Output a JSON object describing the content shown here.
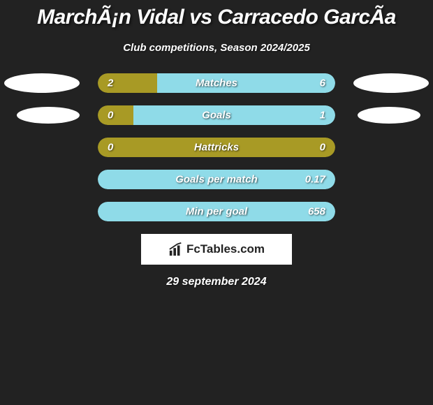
{
  "title": "MarchÃ¡n Vidal vs Carracedo GarcÃ­a",
  "subtitle": "Club competitions, Season 2024/2025",
  "date": "29 september 2024",
  "logo_text": "FcTables.com",
  "colors": {
    "background": "#222222",
    "text": "#ffffff",
    "left_player": "#a89a25",
    "right_player": "#8fdbe8",
    "ellipse": "#ffffff",
    "logo_bg": "#ffffff",
    "logo_text": "#222222"
  },
  "stats": [
    {
      "label": "Matches",
      "left_value": "2",
      "right_value": "6",
      "left_num": 2,
      "right_num": 6,
      "show_ellipses": true,
      "left_pct": 25,
      "right_pct": 75
    },
    {
      "label": "Goals",
      "left_value": "0",
      "right_value": "1",
      "left_num": 0,
      "right_num": 1,
      "show_ellipses": true,
      "left_pct": 15,
      "right_pct": 85
    },
    {
      "label": "Hattricks",
      "left_value": "0",
      "right_value": "0",
      "left_num": 0,
      "right_num": 0,
      "show_ellipses": false,
      "left_pct": 100,
      "right_pct": 0
    },
    {
      "label": "Goals per match",
      "left_value": "",
      "right_value": "0.17",
      "left_num": 0,
      "right_num": 0.17,
      "show_ellipses": false,
      "left_pct": 0,
      "right_pct": 100
    },
    {
      "label": "Min per goal",
      "left_value": "",
      "right_value": "658",
      "left_num": 0,
      "right_num": 658,
      "show_ellipses": false,
      "left_pct": 0,
      "right_pct": 100
    }
  ]
}
